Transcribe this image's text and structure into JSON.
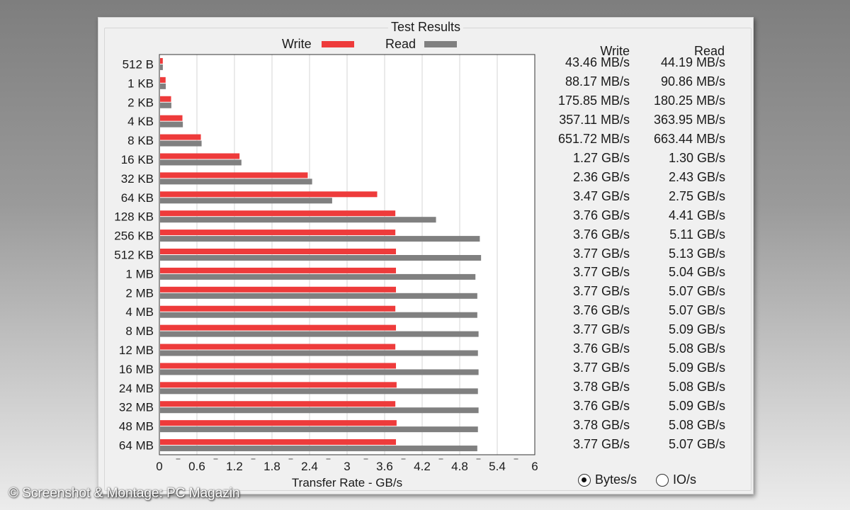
{
  "watermark": "© Screenshot & Montage: PC Magazin",
  "chart_data": {
    "type": "bar",
    "orientation": "horizontal",
    "title": "Test Results",
    "xlabel": "Transfer Rate - GB/s",
    "ylabel": "",
    "xlim": [
      0,
      6
    ],
    "xticks": [
      "0",
      "0.6",
      "1.2",
      "1.8",
      "2.4",
      "3",
      "3.6",
      "4.2",
      "4.8",
      "5.4",
      "6"
    ],
    "grid": "vertical",
    "legend_position": "top",
    "categories": [
      "512 B",
      "1 KB",
      "2 KB",
      "4 KB",
      "8 KB",
      "16 KB",
      "32 KB",
      "64 KB",
      "128 KB",
      "256 KB",
      "512 KB",
      "1 MB",
      "2 MB",
      "4 MB",
      "8 MB",
      "12 MB",
      "16 MB",
      "24 MB",
      "32 MB",
      "48 MB",
      "64 MB"
    ],
    "series": [
      {
        "name": "Write",
        "color": "#ee3b3b",
        "values": [
          0.04346,
          0.08817,
          0.17585,
          0.35711,
          0.65172,
          1.27,
          2.36,
          3.47,
          3.76,
          3.76,
          3.77,
          3.77,
          3.77,
          3.76,
          3.77,
          3.76,
          3.77,
          3.78,
          3.76,
          3.78,
          3.77
        ],
        "labels": [
          "43.46 MB/s",
          "88.17 MB/s",
          "175.85 MB/s",
          "357.11 MB/s",
          "651.72 MB/s",
          "1.27 GB/s",
          "2.36 GB/s",
          "3.47 GB/s",
          "3.76 GB/s",
          "3.76 GB/s",
          "3.77 GB/s",
          "3.77 GB/s",
          "3.77 GB/s",
          "3.76 GB/s",
          "3.77 GB/s",
          "3.76 GB/s",
          "3.77 GB/s",
          "3.78 GB/s",
          "3.76 GB/s",
          "3.78 GB/s",
          "3.77 GB/s"
        ]
      },
      {
        "name": "Read",
        "color": "#808080",
        "values": [
          0.04419,
          0.09086,
          0.18025,
          0.36395,
          0.66344,
          1.3,
          2.43,
          2.75,
          4.41,
          5.11,
          5.13,
          5.04,
          5.07,
          5.07,
          5.09,
          5.08,
          5.09,
          5.08,
          5.09,
          5.08,
          5.07
        ],
        "labels": [
          "44.19 MB/s",
          "90.86 MB/s",
          "180.25 MB/s",
          "363.95 MB/s",
          "663.44 MB/s",
          "1.30 GB/s",
          "2.43 GB/s",
          "2.75 GB/s",
          "4.41 GB/s",
          "5.11 GB/s",
          "5.13 GB/s",
          "5.04 GB/s",
          "5.07 GB/s",
          "5.07 GB/s",
          "5.09 GB/s",
          "5.08 GB/s",
          "5.09 GB/s",
          "5.08 GB/s",
          "5.09 GB/s",
          "5.08 GB/s",
          "5.07 GB/s"
        ]
      }
    ]
  },
  "table": {
    "write_header": "Write",
    "read_header": "Read"
  },
  "units": {
    "options": [
      "Bytes/s",
      "IO/s"
    ],
    "selected": "Bytes/s"
  }
}
